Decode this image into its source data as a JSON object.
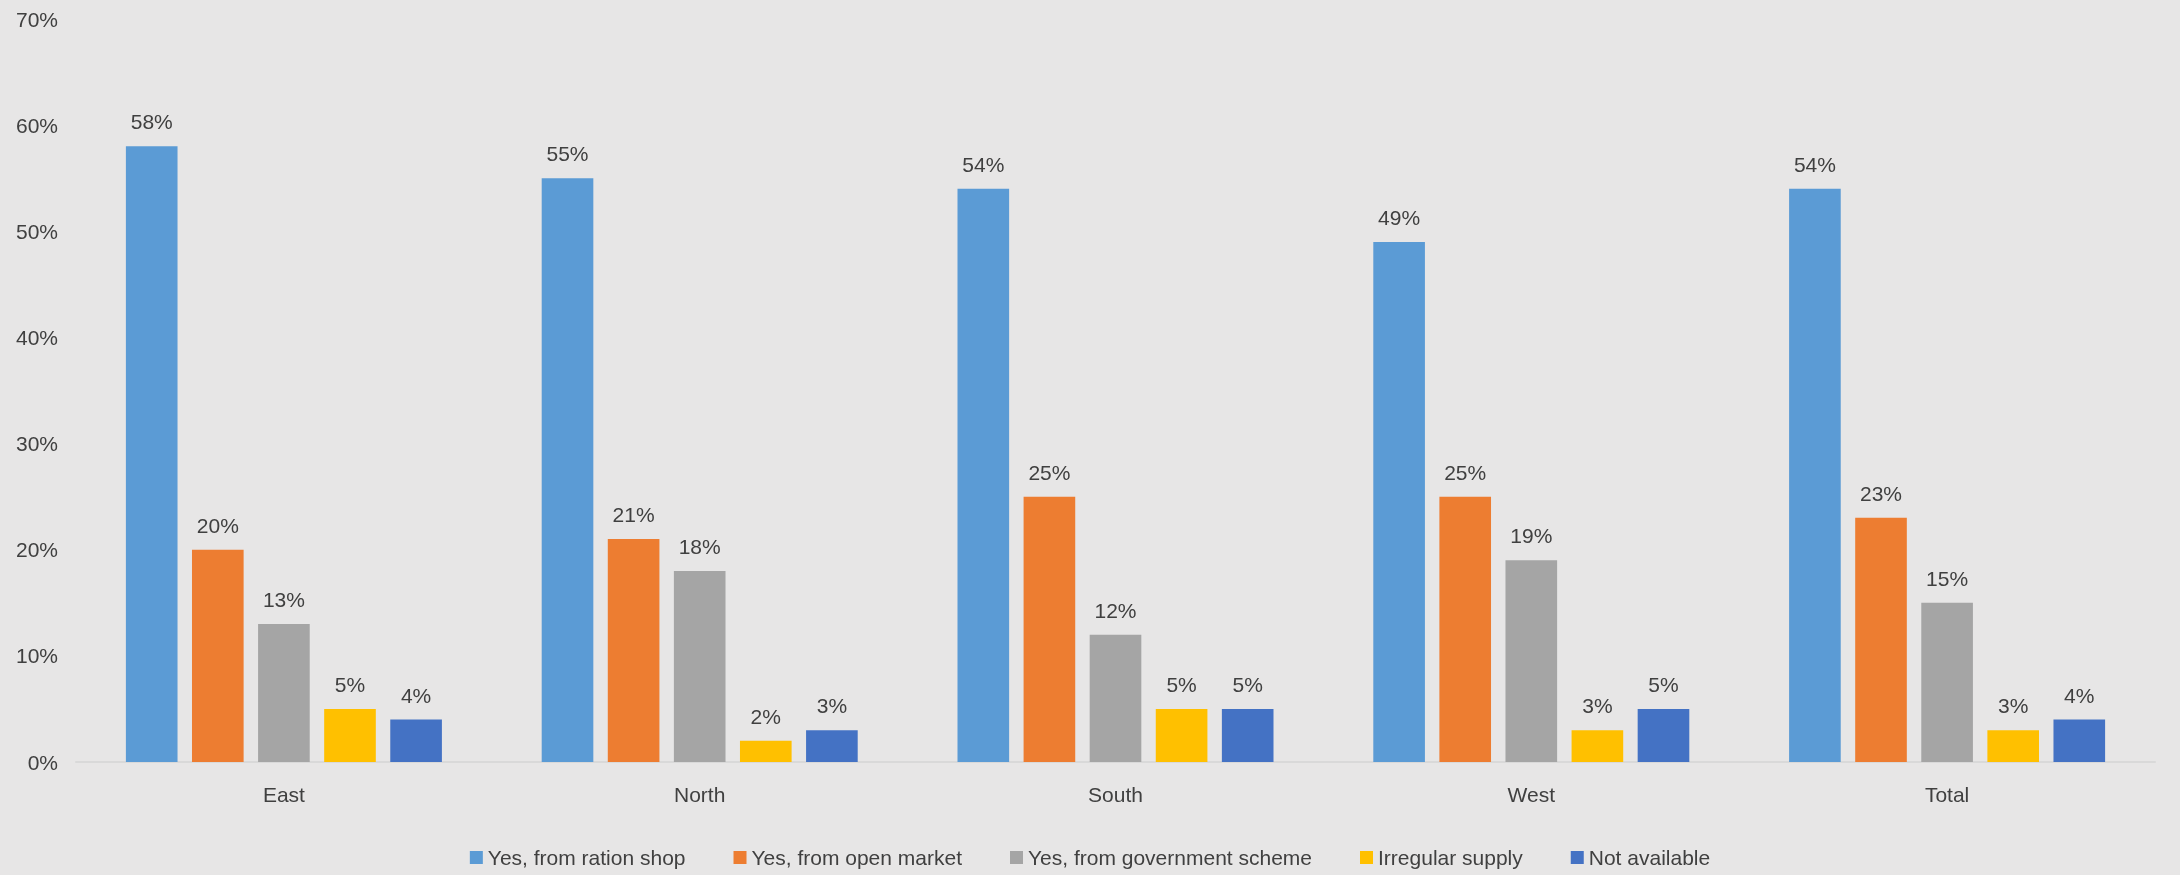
{
  "chart_data": {
    "type": "bar",
    "categories": [
      "East",
      "North",
      "South",
      "West",
      "Total"
    ],
    "series": [
      {
        "name": "Yes, from ration shop",
        "color": "#5b9bd5",
        "values": [
          58,
          55,
          54,
          49,
          54
        ],
        "value_labels": [
          "58%",
          "55%",
          "54%",
          "49%",
          "54%"
        ]
      },
      {
        "name": "Yes, from open market",
        "color": "#ed7d31",
        "values": [
          20,
          21,
          25,
          25,
          23
        ],
        "value_labels": [
          "20%",
          "21%",
          "25%",
          "25%",
          "23%"
        ]
      },
      {
        "name": "Yes, from government scheme",
        "color": "#a5a5a5",
        "values": [
          13,
          18,
          12,
          19,
          15
        ],
        "value_labels": [
          "13%",
          "18%",
          "12%",
          "19%",
          "15%"
        ]
      },
      {
        "name": "Irregular supply",
        "color": "#ffc000",
        "values": [
          5,
          2,
          5,
          3,
          3
        ],
        "value_labels": [
          "5%",
          "2%",
          "5%",
          "3%",
          "3%"
        ]
      },
      {
        "name": "Not available",
        "color": "#4472c4",
        "values": [
          4,
          3,
          5,
          5,
          4
        ],
        "value_labels": [
          "4%",
          "3%",
          "5%",
          "5%",
          "4%"
        ]
      }
    ],
    "ylim": [
      0,
      70
    ],
    "yticks": [
      {
        "value": 0,
        "label": "0%"
      },
      {
        "value": 10,
        "label": "10%"
      },
      {
        "value": 20,
        "label": "20%"
      },
      {
        "value": 30,
        "label": "30%"
      },
      {
        "value": 40,
        "label": "40%"
      },
      {
        "value": 50,
        "label": "50%"
      },
      {
        "value": 60,
        "label": "60%"
      },
      {
        "value": 70,
        "label": "70%"
      }
    ],
    "grid": false,
    "legend": "bottom"
  }
}
